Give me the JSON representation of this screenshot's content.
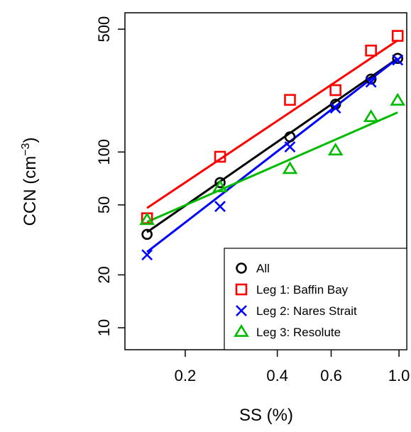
{
  "chart_data": {
    "type": "scatter",
    "xlabel": "SS (%)",
    "ylabel": "CCN (cm",
    "ylabel_sup": "−3",
    "ylabel_close": ")",
    "x_scale": "log",
    "y_scale": "log",
    "xlim": [
      0.127,
      1.06
    ],
    "ylim": [
      7.5,
      620
    ],
    "x_ticks": [
      {
        "value": 0.2,
        "label": "0.2"
      },
      {
        "value": 0.4,
        "label": "0.4"
      },
      {
        "value": 0.6,
        "label": "0.6"
      },
      {
        "value": 1.0,
        "label": "1.0"
      }
    ],
    "y_ticks": [
      {
        "value": 10,
        "label": "10"
      },
      {
        "value": 20,
        "label": "20"
      },
      {
        "value": 50,
        "label": "50"
      },
      {
        "value": 100,
        "label": "100"
      },
      {
        "value": 500,
        "label": "500"
      }
    ],
    "legend_position": "bottom-right",
    "series": [
      {
        "name": "All",
        "marker": "circle",
        "color": "#000000",
        "x": [
          0.15,
          0.26,
          0.44,
          0.62,
          0.81,
          0.99
        ],
        "y": [
          34,
          67,
          122,
          187,
          260,
          341
        ],
        "fit": {
          "x": [
            0.15,
            0.99
          ],
          "y": [
            35,
            341
          ]
        }
      },
      {
        "name": "Leg 1: Baffin Bay",
        "marker": "square",
        "color": "#ff0000",
        "x": [
          0.15,
          0.26,
          0.44,
          0.62,
          0.81,
          0.99
        ],
        "y": [
          42,
          94,
          198,
          225,
          378,
          458
        ],
        "fit": {
          "x": [
            0.15,
            0.99
          ],
          "y": [
            48,
            432
          ]
        }
      },
      {
        "name": "Leg 2: Nares Strait",
        "marker": "x",
        "color": "#0000ff",
        "x": [
          0.15,
          0.26,
          0.44,
          0.62,
          0.81,
          0.99
        ],
        "y": [
          26,
          49,
          107,
          178,
          250,
          334
        ],
        "fit": {
          "x": [
            0.15,
            0.99
          ],
          "y": [
            27,
            341
          ]
        }
      },
      {
        "name": "Leg 3: Resolute",
        "marker": "triangle",
        "color": "#00bb00",
        "x": [
          0.15,
          0.26,
          0.44,
          0.62,
          0.81,
          0.99
        ],
        "y": [
          41,
          63,
          80,
          102,
          158,
          196
        ],
        "fit": {
          "x": [
            0.15,
            0.99
          ],
          "y": [
            40,
            168
          ]
        }
      }
    ]
  }
}
